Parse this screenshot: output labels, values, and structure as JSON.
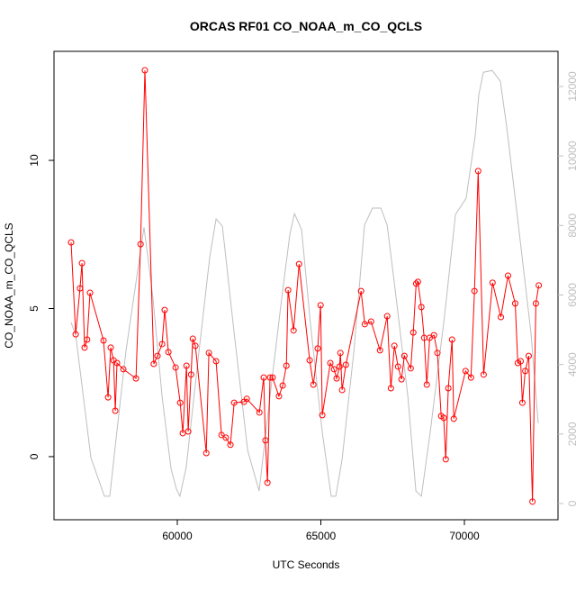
{
  "chart_data": {
    "type": "line",
    "title": "ORCAS RF01 CO_NOAA_m_CO_QCLS",
    "xlabel": "UTC Seconds",
    "ylabel": "CO_NOAA_m_CO_QCLS",
    "xlim": [
      55705,
      73260
    ],
    "xticks": [
      60000,
      65000,
      70000
    ],
    "ylim": [
      -2.13,
      13.68
    ],
    "yticks": [
      0,
      5,
      10
    ],
    "y2lim": [
      -466,
      13010
    ],
    "y2ticks": [
      0,
      2000,
      4000,
      6000,
      8000,
      10000,
      12000
    ],
    "y2color": "#bebebe",
    "series": [
      {
        "color": "#ff0000",
        "markers": true,
        "x": [
          56300,
          56460,
          56610,
          56680,
          56770,
          56860,
          56960,
          57430,
          57590,
          57680,
          57780,
          57840,
          57900,
          58120,
          58560,
          58720,
          58870,
          59180,
          59310,
          59470,
          59560,
          59690,
          59940,
          60100,
          60190,
          60320,
          60380,
          60480,
          60540,
          60630,
          61010,
          61100,
          61350,
          61540,
          61690,
          61850,
          61980,
          62320,
          62420,
          62860,
          63010,
          63070,
          63140,
          63230,
          63320,
          63540,
          63670,
          63800,
          63860,
          64050,
          64240,
          64610,
          64740,
          64890,
          64990,
          65050,
          65330,
          65460,
          65550,
          65650,
          65680,
          65740,
          65870,
          66400,
          66530,
          66750,
          67060,
          67310,
          67440,
          67560,
          67690,
          67810,
          67910,
          68130,
          68220,
          68320,
          68380,
          68500,
          68600,
          68690,
          68790,
          68940,
          69060,
          69190,
          69280,
          69350,
          69440,
          69570,
          69630,
          70040,
          70230,
          70350,
          70480,
          70670,
          70980,
          71270,
          71520,
          71770,
          71860,
          71960,
          72020,
          72120,
          72240,
          72370,
          72490,
          72590
        ],
        "values": [
          7.23,
          4.13,
          5.68,
          6.53,
          3.68,
          3.95,
          5.53,
          3.92,
          2.0,
          3.68,
          3.25,
          1.55,
          3.16,
          2.95,
          2.64,
          7.17,
          13.04,
          3.13,
          3.4,
          3.8,
          4.95,
          3.53,
          3.01,
          1.82,
          0.79,
          3.07,
          0.85,
          2.77,
          3.98,
          3.74,
          0.12,
          3.5,
          3.22,
          0.73,
          0.64,
          0.4,
          1.82,
          1.85,
          1.95,
          1.49,
          2.67,
          0.55,
          -0.88,
          2.67,
          2.67,
          2.04,
          2.4,
          3.07,
          5.62,
          4.26,
          6.5,
          3.25,
          2.43,
          3.65,
          5.11,
          1.4,
          3.16,
          2.95,
          2.64,
          3.04,
          3.5,
          2.25,
          3.1,
          5.59,
          4.47,
          4.56,
          3.59,
          4.74,
          2.31,
          3.74,
          3.04,
          2.61,
          3.4,
          2.98,
          4.19,
          5.84,
          5.9,
          5.05,
          4.01,
          2.43,
          4.01,
          4.1,
          3.5,
          1.37,
          1.31,
          -0.09,
          2.31,
          3.95,
          1.28,
          2.89,
          2.67,
          5.59,
          9.64,
          2.77,
          5.87,
          4.71,
          6.11,
          5.17,
          3.16,
          3.22,
          1.82,
          2.89,
          3.4,
          -1.52,
          5.17,
          5.78
        ]
      },
      {
        "color": "#bebebe",
        "axis": "y2",
        "markers": false,
        "x": [
          56300,
          56460,
          56650,
          56990,
          57460,
          57650,
          57840,
          58210,
          58840,
          59150,
          59470,
          59780,
          59970,
          60090,
          60310,
          60720,
          61130,
          61350,
          61570,
          61980,
          62450,
          62850,
          63230,
          63640,
          63920,
          64080,
          64330,
          64640,
          65050,
          65360,
          65520,
          65740,
          66150,
          66520,
          66800,
          67090,
          67310,
          67620,
          68030,
          68310,
          68500,
          68810,
          69310,
          69690,
          70060,
          70380,
          70500,
          70660,
          70970,
          71250,
          71470,
          71880,
          72320,
          72570
        ],
        "values": [
          5210,
          4850,
          3600,
          1320,
          210,
          210,
          1660,
          4380,
          7950,
          5930,
          3080,
          1010,
          410,
          210,
          1040,
          4120,
          7100,
          8190,
          7980,
          4900,
          1530,
          360,
          3080,
          5930,
          7750,
          8340,
          7880,
          5160,
          2050,
          210,
          210,
          1270,
          4380,
          8010,
          8500,
          8500,
          8010,
          5930,
          3080,
          360,
          210,
          2050,
          5410,
          8320,
          8780,
          10600,
          11760,
          12410,
          12460,
          12150,
          10860,
          8010,
          4900,
          2310
        ]
      }
    ]
  }
}
